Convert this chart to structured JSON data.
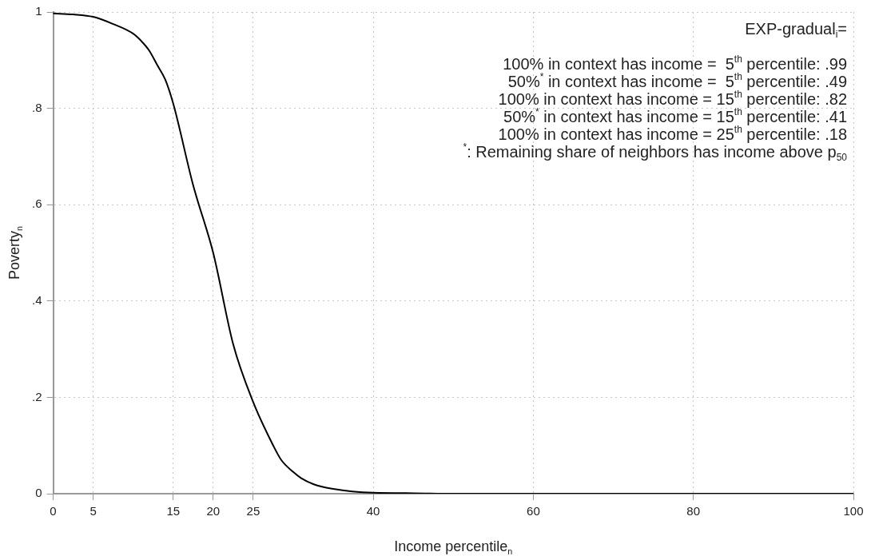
{
  "chart_data": {
    "type": "line",
    "xlabel": "Income percentile$_{n}$",
    "ylabel": "Poverty$_{n}$",
    "x": [
      0,
      2.5,
      5,
      7.5,
      10,
      11,
      12,
      13,
      14,
      15,
      17.5,
      20,
      22.5,
      25,
      27.5,
      28.5,
      30,
      31,
      32.5,
      35,
      40,
      45,
      50,
      60,
      70,
      80,
      90,
      100
    ],
    "series": [
      {
        "color": "#000000",
        "values": [
          0.997,
          0.995,
          0.99,
          0.975,
          0.955,
          0.94,
          0.92,
          0.89,
          0.86,
          0.81,
          0.64,
          0.5,
          0.31,
          0.19,
          0.1,
          0.07,
          0.045,
          0.032,
          0.02,
          0.01,
          0.002,
          0.001,
          0,
          0,
          0,
          0,
          0,
          0
        ]
      }
    ],
    "xlim": [
      0,
      100
    ],
    "xticks": [
      0,
      5,
      15,
      20,
      25,
      40,
      60,
      80,
      100
    ],
    "ylim": [
      0,
      1
    ],
    "yticks": [
      0,
      {
        "value": 0.2,
        "label": ".2"
      },
      {
        "value": 0.4,
        "label": ".4"
      },
      {
        "value": 0.6,
        "label": ".6"
      },
      {
        "value": 0.8,
        "label": ".8"
      },
      1
    ],
    "grid": true,
    "legend": false,
    "marker": "none",
    "line_style": "solid",
    "annotations": [
      "EXP-gradual$_{i}$=",
      "100% in context has income =  5$^{th}$ percentile: .99",
      "50%$^{*}$ in context has income =  5$^{th}$ percentile: .49",
      "100% in context has income = 15$^{th}$ percentile: .82",
      "50%$^{*}$ in context has income = 15$^{th}$ percentile: .41",
      "100% in context has income = 25$^{th}$ percentile: .18",
      "$^{*}$: Remaining share of neighbors has income above p$_{50}$"
    ]
  }
}
